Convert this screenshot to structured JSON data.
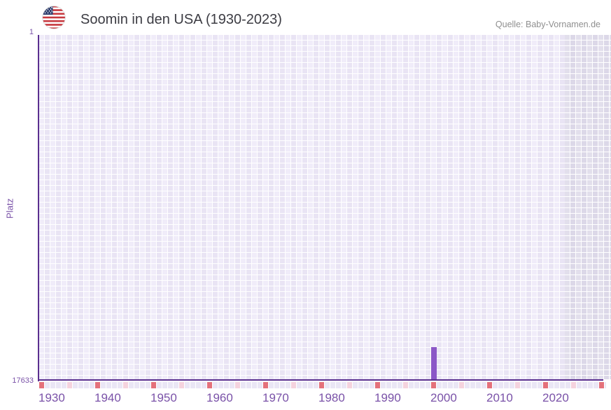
{
  "header": {
    "title": "Soomin in den USA (1930-2023)",
    "source": "Quelle: Baby-Vornamen.de"
  },
  "chart_data": {
    "type": "bar",
    "title": "Soomin in den USA (1930-2023)",
    "xlabel": "",
    "ylabel": "Platz",
    "x_range": [
      1930,
      2023
    ],
    "y_axis": {
      "top_tick": "1",
      "bottom_tick": "17633",
      "min": 1,
      "max": 17633,
      "inverted": true
    },
    "x_ticks": [
      1930,
      1940,
      1950,
      1960,
      1970,
      1980,
      1990,
      2000,
      2010,
      2020
    ],
    "tick_marker_years": {
      "red": [
        1930,
        1940,
        1950,
        1960,
        1970,
        1980,
        1990,
        2000,
        2010,
        2020,
        2030
      ],
      "pink": [
        1935,
        1945,
        1955,
        1965,
        1975,
        1985,
        1995,
        2005,
        2015,
        2025
      ]
    },
    "series": [
      {
        "name": "Platz",
        "points": [
          {
            "year": 2000,
            "rank": 15990
          }
        ]
      }
    ],
    "grid": true,
    "legend": "none"
  },
  "colors": {
    "bar": "#8b57c7",
    "axis_line": "#5a2f8f",
    "tick_text": "#7a52a8",
    "decade_marker": "#e4717b",
    "half_decade_marker": "#f5d3de",
    "grid_cell_light": "#f0ecf9",
    "grid_cell_dark": "#e9e4f4",
    "future_cell": "#dfdbea",
    "title_text": "#3c3c43",
    "source_text": "#8f8f8f",
    "flag_red": "#c7393f",
    "flag_blue": "#2e3e6e"
  }
}
